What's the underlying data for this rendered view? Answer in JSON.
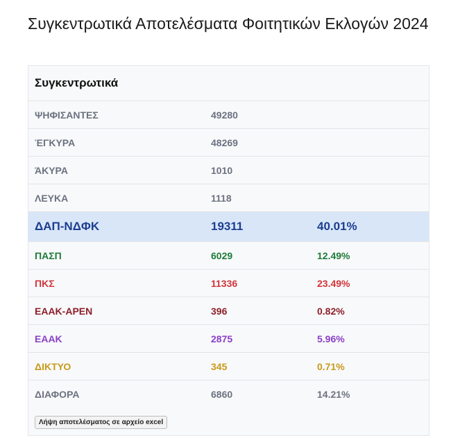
{
  "page": {
    "title": "Συγκεντρωτικά Αποτελέσματα Φοιτητικών Εκλογών 2024"
  },
  "panel": {
    "title": "Συγκεντρωτικά"
  },
  "colors": {
    "default": "#6b7280",
    "dap": "#1d3d8f",
    "pasp": "#1e7a3a",
    "pks": "#d0353b",
    "eaak_aren": "#8c1f2a",
    "eaak": "#8a3fc9",
    "diktyo": "#c89a1a",
    "diafora": "#6b7280"
  },
  "rows": [
    {
      "label": "ΨΗΦΙΣΑΝΤΕΣ",
      "votes": "49280",
      "percent": ""
    },
    {
      "label": "ΈΓΚΥΡΑ",
      "votes": "48269",
      "percent": ""
    },
    {
      "label": "ΆΚΥΡΑ",
      "votes": "1010",
      "percent": ""
    },
    {
      "label": "ΛΕΥΚΑ",
      "votes": "1118",
      "percent": ""
    },
    {
      "label": "ΔΑΠ-ΝΔΦΚ",
      "votes": "19311",
      "percent": "40.01%"
    },
    {
      "label": "ΠΑΣΠ",
      "votes": "6029",
      "percent": "12.49%"
    },
    {
      "label": "ΠΚΣ",
      "votes": "11336",
      "percent": "23.49%"
    },
    {
      "label": "ΕΑΑΚ-ΑΡΕΝ",
      "votes": "396",
      "percent": "0.82%"
    },
    {
      "label": "ΕΑΑΚ",
      "votes": "2875",
      "percent": "5.96%"
    },
    {
      "label": "ΔΙΚΤΥΟ",
      "votes": "345",
      "percent": "0.71%"
    },
    {
      "label": "ΔΙΑΦΟΡΑ",
      "votes": "6860",
      "percent": "14.21%"
    }
  ],
  "download": {
    "label": "Λήψη αποτελέσματος σε αρχείο excel"
  }
}
